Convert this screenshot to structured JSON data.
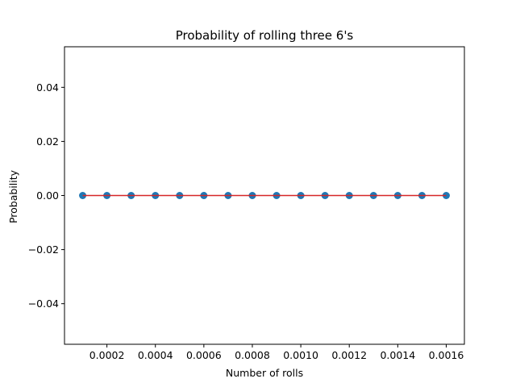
{
  "chart_data": {
    "type": "scatter",
    "title": "Probability of rolling three 6's",
    "xlabel": "Number of rolls",
    "ylabel": "Probability",
    "xlim": [
      2.5e-05,
      0.001675
    ],
    "ylim": [
      -0.055,
      0.055
    ],
    "x_ticks": [
      0.0002,
      0.0004,
      0.0006,
      0.0008,
      0.001,
      0.0012,
      0.0014,
      0.0016
    ],
    "x_tick_labels": [
      "0.0002",
      "0.0004",
      "0.0006",
      "0.0008",
      "0.0010",
      "0.0012",
      "0.0014",
      "0.0016"
    ],
    "y_ticks": [
      -0.04,
      -0.02,
      0.0,
      0.02,
      0.04
    ],
    "y_tick_labels": [
      "−0.04",
      "−0.02",
      "0.00",
      "0.02",
      "0.04"
    ],
    "grid": false,
    "series": [
      {
        "kind": "scatter",
        "color": "#1f77b4",
        "x": [
          0.0001,
          0.0002,
          0.0003,
          0.0004,
          0.0005,
          0.0006,
          0.0007,
          0.0008,
          0.0009,
          0.001,
          0.0011,
          0.0012,
          0.0013,
          0.0014,
          0.0015,
          0.0016
        ],
        "y": [
          0,
          0,
          0,
          0,
          0,
          0,
          0,
          0,
          0,
          0,
          0,
          0,
          0,
          0,
          0,
          0
        ]
      },
      {
        "kind": "line",
        "color": "#d62728",
        "x": [
          0.0001,
          0.0002,
          0.0003,
          0.0004,
          0.0005,
          0.0006,
          0.0007,
          0.0008,
          0.0009,
          0.001,
          0.0011,
          0.0012,
          0.0013,
          0.0014,
          0.0015,
          0.0016
        ],
        "y": [
          0,
          0,
          0,
          0,
          0,
          0,
          0,
          0,
          0,
          0,
          0,
          0,
          0,
          0,
          0,
          0
        ]
      }
    ]
  }
}
